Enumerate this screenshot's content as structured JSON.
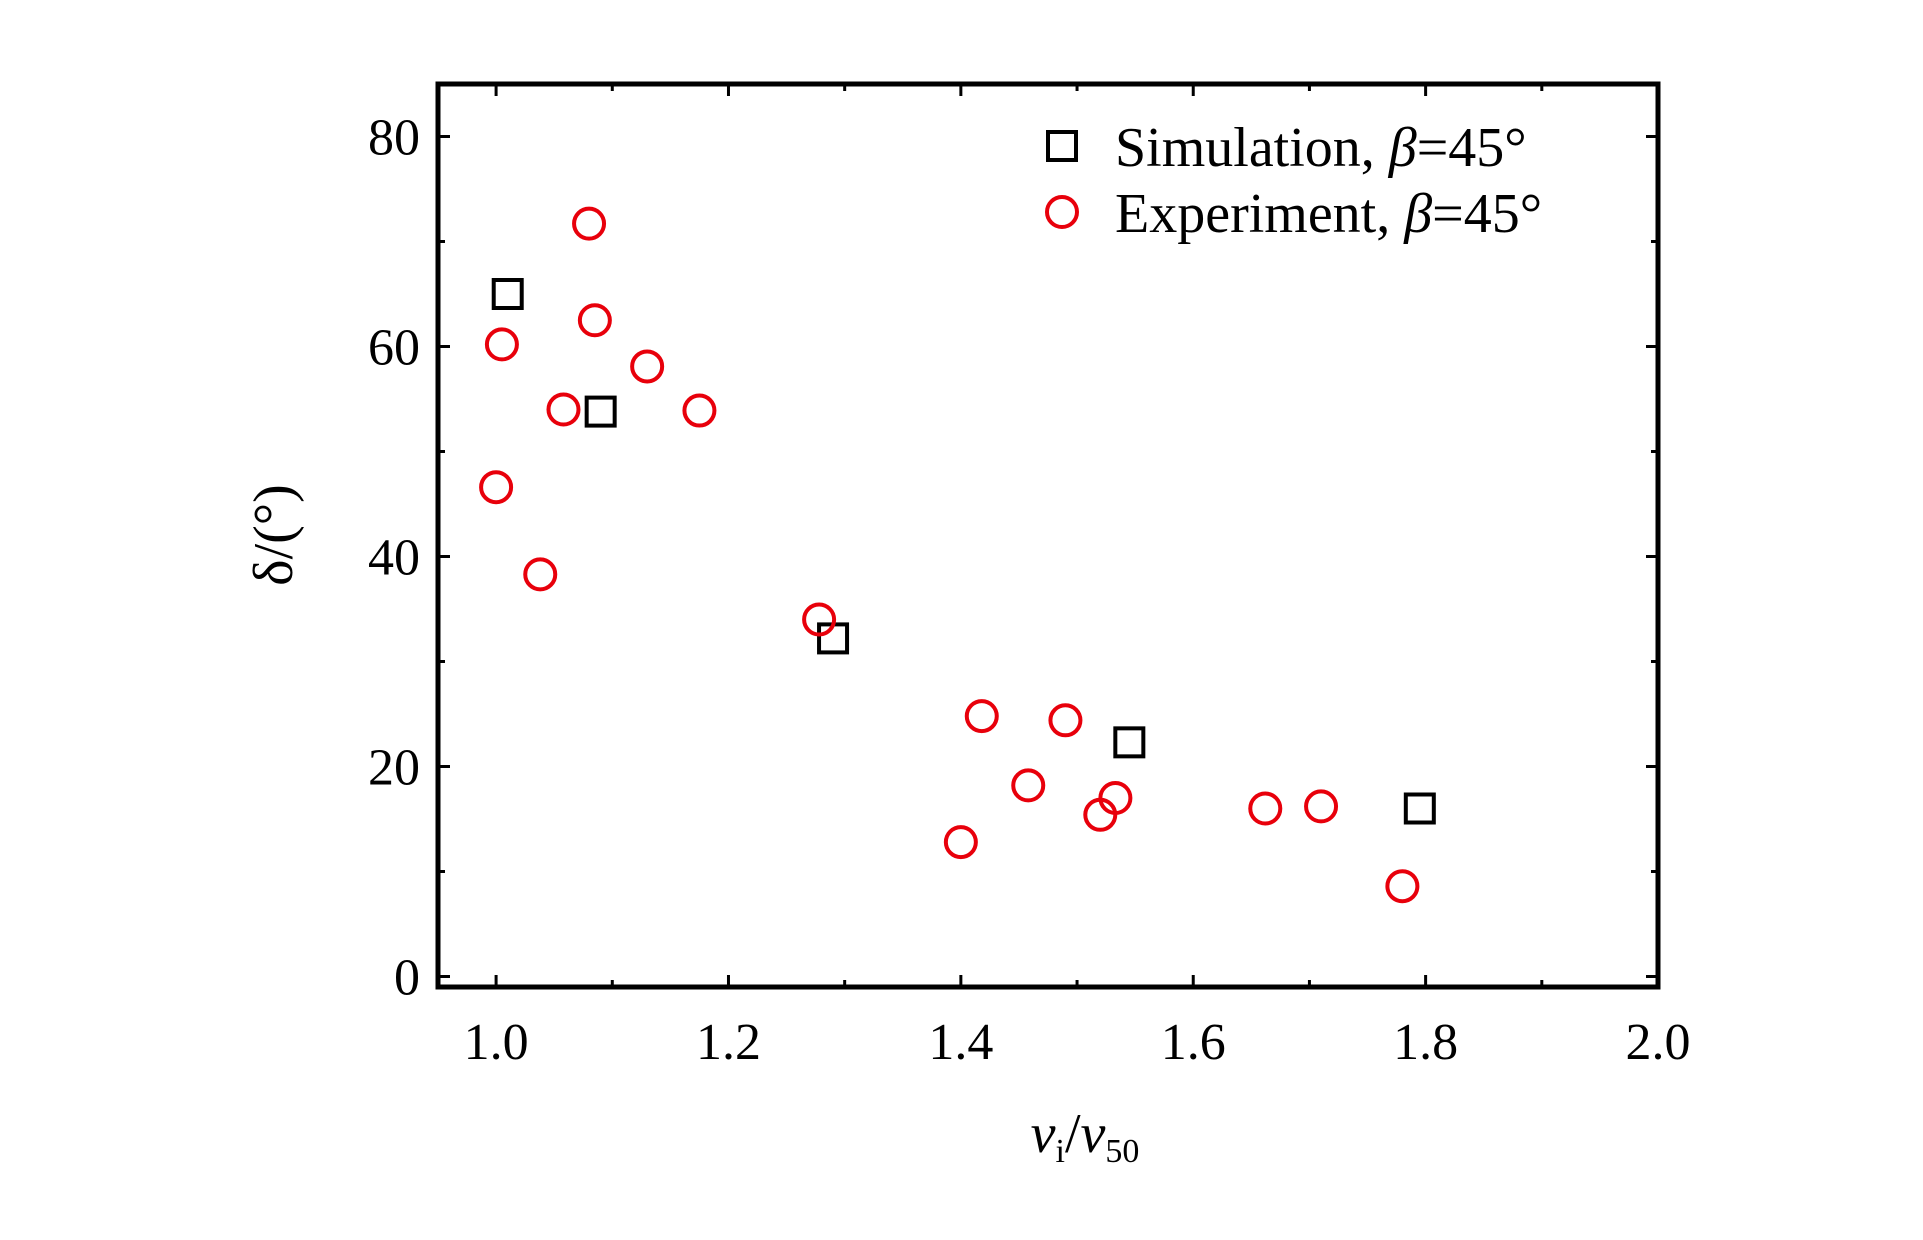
{
  "chart_data": {
    "type": "scatter",
    "title": "",
    "xlabel": "v_i/v_50",
    "xlabel_parts": {
      "main1": "v",
      "sub1": "i",
      "slash": "/",
      "main2": "v",
      "sub2": "50"
    },
    "ylabel": "δ/(°)",
    "xlim": [
      0.95,
      2.0
    ],
    "ylim": [
      -1,
      85
    ],
    "xticks": [
      1.0,
      1.2,
      1.4,
      1.6,
      1.8,
      2.0
    ],
    "xtick_labels": [
      "1.0",
      "1.2",
      "1.4",
      "1.6",
      "1.8",
      "2.0"
    ],
    "yticks": [
      0,
      20,
      40,
      60,
      80
    ],
    "ytick_labels": [
      "0",
      "20",
      "40",
      "60",
      "80"
    ],
    "grid": false,
    "legend_position": "top-right",
    "series": [
      {
        "name": "Simulation, β=45°",
        "marker": "square",
        "color": "#000000",
        "points": [
          {
            "x": 1.01,
            "y": 65.0
          },
          {
            "x": 1.09,
            "y": 53.8
          },
          {
            "x": 1.29,
            "y": 32.2
          },
          {
            "x": 1.545,
            "y": 22.3
          },
          {
            "x": 1.795,
            "y": 16.0
          }
        ]
      },
      {
        "name": "Experiment, β=45°",
        "marker": "circle",
        "color": "#e8000b",
        "points": [
          {
            "x": 1.08,
            "y": 71.7
          },
          {
            "x": 1.085,
            "y": 62.5
          },
          {
            "x": 1.005,
            "y": 60.2
          },
          {
            "x": 1.13,
            "y": 58.1
          },
          {
            "x": 1.058,
            "y": 54.0
          },
          {
            "x": 1.175,
            "y": 53.9
          },
          {
            "x": 1.0,
            "y": 46.6
          },
          {
            "x": 1.038,
            "y": 38.3
          },
          {
            "x": 1.278,
            "y": 34.0
          },
          {
            "x": 1.418,
            "y": 24.8
          },
          {
            "x": 1.49,
            "y": 24.4
          },
          {
            "x": 1.458,
            "y": 18.2
          },
          {
            "x": 1.533,
            "y": 17.0
          },
          {
            "x": 1.52,
            "y": 15.4
          },
          {
            "x": 1.4,
            "y": 12.8
          },
          {
            "x": 1.662,
            "y": 16.0
          },
          {
            "x": 1.71,
            "y": 16.2
          },
          {
            "x": 1.78,
            "y": 8.6
          }
        ]
      }
    ],
    "legend_parts": [
      {
        "prefix": "Simulation, ",
        "symbol": "β",
        "suffix": "=45°"
      },
      {
        "prefix": "Experiment, ",
        "symbol": "β",
        "suffix": "=45°"
      }
    ]
  }
}
